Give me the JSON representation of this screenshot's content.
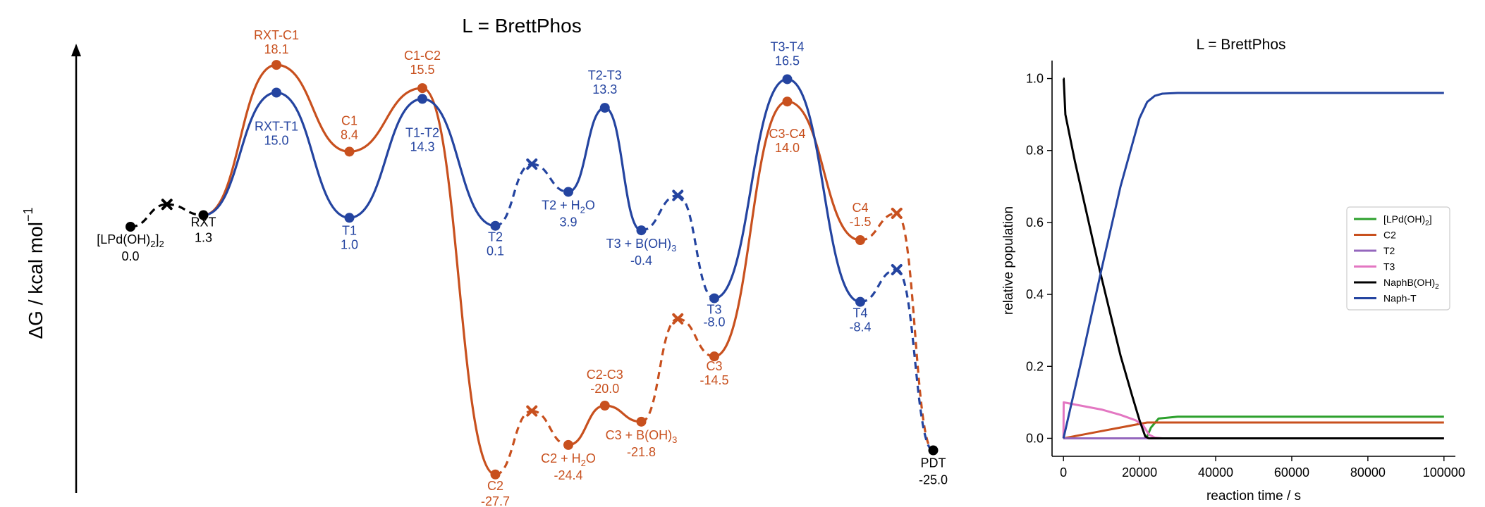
{
  "colors": {
    "red": "#c8501e",
    "blue": "#2444a0",
    "black": "#000000"
  },
  "chart_data": [
    {
      "type": "energy_profile",
      "title": "L = BrettPhos",
      "ylabel": "ΔG / kcal mol",
      "ylabel_sup": "−1",
      "grid": false,
      "points": [
        {
          "id": "start",
          "path": "common",
          "kind": "min",
          "name": "[LPd(OH)",
          "name_sub": "2",
          "name_tail": "]",
          "name_sub2": "2",
          "value": "0.0",
          "x": 0,
          "y": 0.0
        },
        {
          "id": "x0",
          "path": "common",
          "kind": "x",
          "x": 0.5,
          "y": 2.5
        },
        {
          "id": "rxt",
          "path": "common",
          "kind": "min",
          "name": "RXT",
          "value": "1.3",
          "x": 1,
          "y": 1.3
        },
        {
          "id": "rxtc1",
          "path": "red",
          "kind": "ts",
          "name": "RXT-C1",
          "value": "18.1",
          "x": 2,
          "y": 18.1
        },
        {
          "id": "c1",
          "path": "red",
          "kind": "min",
          "name": "C1",
          "value": "8.4",
          "x": 3,
          "y": 8.4
        },
        {
          "id": "c1c2",
          "path": "red",
          "kind": "ts",
          "name": "C1-C2",
          "value": "15.5",
          "x": 4,
          "y": 15.5
        },
        {
          "id": "c2",
          "path": "red",
          "kind": "min",
          "name": "C2",
          "value": "-27.7",
          "x": 5,
          "y": -27.7
        },
        {
          "id": "xr1",
          "path": "red",
          "kind": "x",
          "x": 5.5,
          "y": -20.6
        },
        {
          "id": "c2h2o",
          "path": "red",
          "kind": "min",
          "name": "C2 + H",
          "name_sub": "2",
          "name_tail": "O",
          "value": "-24.4",
          "x": 6,
          "y": -24.4
        },
        {
          "id": "c2c3",
          "path": "red",
          "kind": "ts",
          "name": "C2-C3",
          "value": "-20.0",
          "x": 6.5,
          "y": -20.0
        },
        {
          "id": "c3boh",
          "path": "red",
          "kind": "min",
          "name": "C3 + B(OH)",
          "name_sub": "3",
          "value": "-21.8",
          "x": 7,
          "y": -21.8
        },
        {
          "id": "xr2",
          "path": "red",
          "kind": "x",
          "x": 7.5,
          "y": -10.3
        },
        {
          "id": "c3",
          "path": "red",
          "kind": "min",
          "name": "C3",
          "value": "-14.5",
          "x": 8,
          "y": -14.5
        },
        {
          "id": "c3c4",
          "path": "red",
          "kind": "ts",
          "name": "C3-C4",
          "value": "14.0",
          "x": 9,
          "y": 14.0
        },
        {
          "id": "c4",
          "path": "red",
          "kind": "min",
          "name": "C4",
          "value": "-1.5",
          "x": 10,
          "y": -1.5
        },
        {
          "id": "xr3",
          "path": "red",
          "kind": "x",
          "x": 10.5,
          "y": 1.5
        },
        {
          "id": "rxtt1",
          "path": "blue",
          "kind": "ts",
          "name": "RXT-T1",
          "value": "15.0",
          "x": 2,
          "y": 15.0
        },
        {
          "id": "t1",
          "path": "blue",
          "kind": "min",
          "name": "T1",
          "value": "1.0",
          "x": 3,
          "y": 1.0
        },
        {
          "id": "t1t2",
          "path": "blue",
          "kind": "ts",
          "name": "T1-T2",
          "value": "14.3",
          "x": 4,
          "y": 14.3
        },
        {
          "id": "t2",
          "path": "blue",
          "kind": "min",
          "name": "T2",
          "value": "0.1",
          "x": 5,
          "y": 0.1
        },
        {
          "id": "xb1",
          "path": "blue",
          "kind": "x",
          "x": 5.5,
          "y": 7.0
        },
        {
          "id": "t2h2o",
          "path": "blue",
          "kind": "min",
          "name": "T2 + H",
          "name_sub": "2",
          "name_tail": "O",
          "value": "3.9",
          "x": 6,
          "y": 3.9
        },
        {
          "id": "t2t3",
          "path": "blue",
          "kind": "ts",
          "name": "T2-T3",
          "value": "13.3",
          "x": 6.5,
          "y": 13.3
        },
        {
          "id": "t3boh",
          "path": "blue",
          "kind": "min",
          "name": "T3 + B(OH)",
          "name_sub": "3",
          "value": "-0.4",
          "x": 7,
          "y": -0.4
        },
        {
          "id": "xb2",
          "path": "blue",
          "kind": "x",
          "x": 7.5,
          "y": 3.5
        },
        {
          "id": "t3",
          "path": "blue",
          "kind": "min",
          "name": "T3",
          "value": "-8.0",
          "x": 8,
          "y": -8.0
        },
        {
          "id": "t3t4",
          "path": "blue",
          "kind": "ts",
          "name": "T3-T4",
          "value": "16.5",
          "x": 9,
          "y": 16.5
        },
        {
          "id": "t4",
          "path": "blue",
          "kind": "min",
          "name": "T4",
          "value": "-8.4",
          "x": 10,
          "y": -8.4
        },
        {
          "id": "xb3",
          "path": "blue",
          "kind": "x",
          "x": 10.5,
          "y": -4.8
        },
        {
          "id": "pdt",
          "path": "common",
          "kind": "min",
          "name": "PDT",
          "value": "-25.0",
          "x": 11,
          "y": -25.0
        }
      ]
    },
    {
      "type": "line",
      "title": "L = BrettPhos",
      "xlabel": "reaction time / s",
      "ylabel": "relative population",
      "xlim": [
        -3000,
        103000
      ],
      "ylim": [
        -0.05,
        1.05
      ],
      "xticks": [
        "0",
        "20000",
        "40000",
        "60000",
        "80000",
        "100000"
      ],
      "xtick_values": [
        0,
        20000,
        40000,
        60000,
        80000,
        100000
      ],
      "yticks": [
        "0.0",
        "0.2",
        "0.4",
        "0.6",
        "0.8",
        "1.0"
      ],
      "ytick_values": [
        0,
        0.2,
        0.4,
        0.6,
        0.8,
        1.0
      ],
      "legend": "center-right",
      "series": [
        {
          "name": "[LPd(OH)",
          "name_sub": "2",
          "name_tail": "]",
          "color": "#2ca02c",
          "x": [
            0,
            19000,
            20500,
            21500,
            22200,
            23000,
            25000,
            30000,
            50000,
            100000
          ],
          "y": [
            0,
            0,
            0,
            0,
            0.01,
            0.03,
            0.055,
            0.06,
            0.06,
            0.06
          ]
        },
        {
          "name": "C2",
          "color": "#c8501e",
          "x": [
            0,
            5000,
            10000,
            15000,
            20000,
            22000,
            25000,
            50000,
            100000
          ],
          "y": [
            0,
            0.01,
            0.02,
            0.03,
            0.04,
            0.044,
            0.044,
            0.044,
            0.044
          ]
        },
        {
          "name": "T2",
          "color": "#9467bd",
          "x": [
            0,
            50000,
            100000
          ],
          "y": [
            0,
            0,
            0
          ]
        },
        {
          "name": "T3",
          "color": "#e377c2",
          "x": [
            0,
            50,
            5000,
            10000,
            15000,
            19000,
            21000,
            22500,
            24000,
            26000,
            100000
          ],
          "y": [
            0,
            0.1,
            0.09,
            0.08,
            0.065,
            0.05,
            0.035,
            0.01,
            0.002,
            0,
            0
          ]
        },
        {
          "name": "NaphB(OH)",
          "name_sub": "2",
          "color": "#000000",
          "x": [
            0,
            50,
            500,
            3000,
            6000,
            9000,
            12000,
            15000,
            18000,
            20000,
            21500,
            22500,
            100000
          ],
          "y": [
            1.0,
            1.0,
            0.9,
            0.77,
            0.63,
            0.49,
            0.36,
            0.23,
            0.12,
            0.05,
            0.005,
            0,
            0
          ]
        },
        {
          "name": "Naph-T",
          "color": "#2444a0",
          "x": [
            0,
            5000,
            10000,
            15000,
            20000,
            22000,
            24000,
            26000,
            30000,
            40000,
            100000
          ],
          "y": [
            0,
            0.23,
            0.47,
            0.7,
            0.89,
            0.935,
            0.952,
            0.958,
            0.96,
            0.96,
            0.96
          ]
        }
      ]
    }
  ]
}
